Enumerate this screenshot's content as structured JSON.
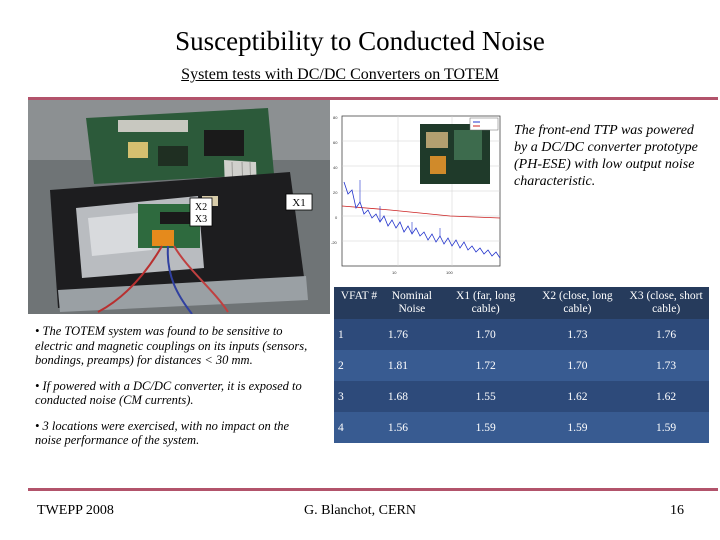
{
  "slide": {
    "title": "Susceptibility to Conducted Noise",
    "subtitle": "System tests with DC/DC Converters on TOTEM",
    "photo_labels": {
      "x1": "X1",
      "x2": "X2",
      "x3": "X3"
    },
    "side_text": "The front-end TTP was powered by a DC/DC converter prototype (PH-ESE) with low output noise characteristic.",
    "bullets": [
      "• The TOTEM system was found to be sensitive to electric and magnetic couplings on its inputs (sensors, bondings, preamps) for distances < 30 mm.",
      "• If powered with a DC/DC converter, it is exposed to conducted noise (CM currents).",
      "• 3 locations were exercised, with no impact on the noise performance of the system."
    ],
    "table": {
      "headers": [
        "VFAT #",
        "Nominal Noise",
        "X1 (far, long cable)",
        "X2 (close, long cable)",
        "X3 (close, short cable)"
      ],
      "rows": [
        [
          "1",
          "1.76",
          "1.70",
          "1.73",
          "1.76"
        ],
        [
          "2",
          "1.81",
          "1.72",
          "1.70",
          "1.73"
        ],
        [
          "3",
          "1.68",
          "1.55",
          "1.62",
          "1.62"
        ],
        [
          "4",
          "1.56",
          "1.59",
          "1.59",
          "1.59"
        ]
      ]
    },
    "footer": {
      "left": "TWEPP 2008",
      "center": "G. Blanchot, CERN",
      "page": "16"
    }
  },
  "colors": {
    "accent_rule": "#b2536b",
    "table_header": "#263b5c",
    "table_row_odd": "#2d4a7a",
    "table_row_even": "#385b91",
    "spectrum_trace": "#2233cc"
  }
}
